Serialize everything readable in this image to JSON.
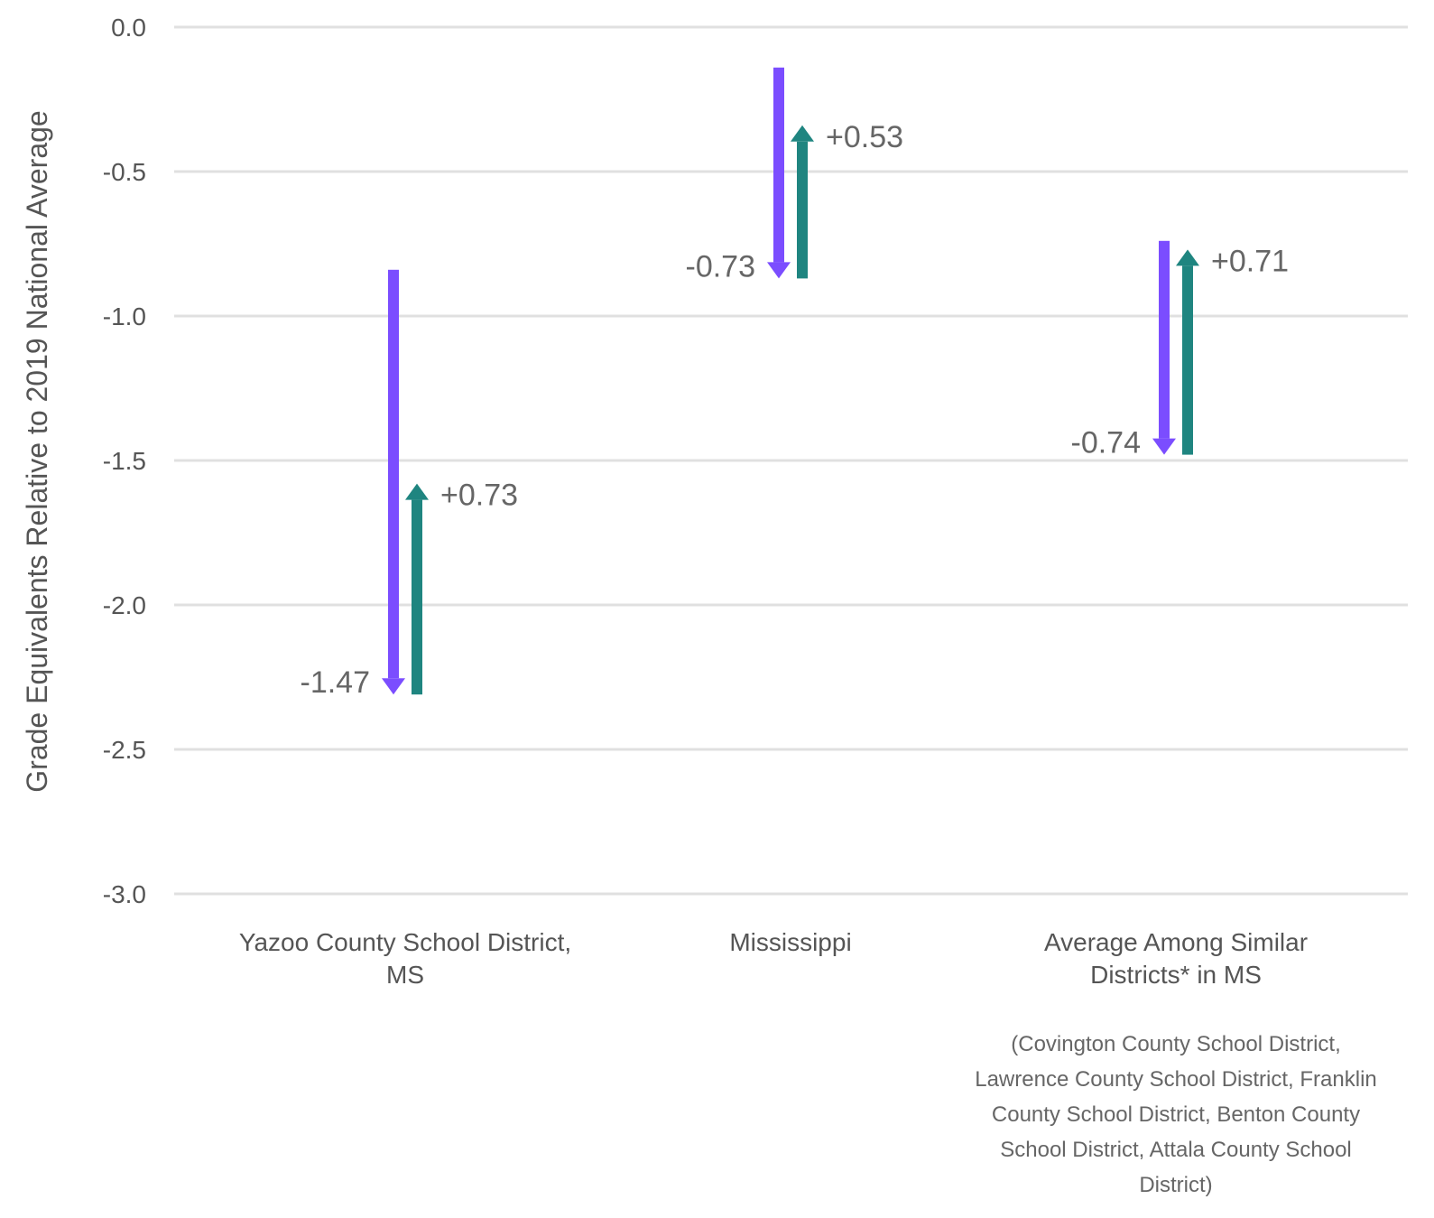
{
  "chart_data": {
    "type": "arrow-range",
    "ylabel": "Grade Equivalents Relative to 2019 National Average",
    "ylim": [
      -3.0,
      0.0
    ],
    "yticks": [
      "0.0",
      "-0.5",
      "-1.0",
      "-1.5",
      "-2.0",
      "-2.5",
      "-3.0"
    ],
    "grid": true,
    "categories": [
      {
        "label_lines": [
          "Yazoo County School District,",
          "MS"
        ],
        "note_lines": [],
        "decline": {
          "start": -0.84,
          "end": -2.31,
          "label": "-1.47"
        },
        "recovery": {
          "start": -2.31,
          "end": -1.58,
          "label": "+0.73"
        }
      },
      {
        "label_lines": [
          "Mississippi"
        ],
        "note_lines": [],
        "decline": {
          "start": -0.14,
          "end": -0.87,
          "label": "-0.73"
        },
        "recovery": {
          "start": -0.87,
          "end": -0.34,
          "label": "+0.53"
        }
      },
      {
        "label_lines": [
          "Average Among Similar",
          "Districts* in MS"
        ],
        "note_lines": [
          "(Covington County School District,",
          "Lawrence County School District, Franklin",
          "County School District, Benton County",
          "School District, Attala County School",
          "District)"
        ],
        "decline": {
          "start": -0.74,
          "end": -1.48,
          "label": "-0.74"
        },
        "recovery": {
          "start": -1.48,
          "end": -0.77,
          "label": "+0.71"
        }
      }
    ],
    "colors": {
      "decline": "#7b4dff",
      "recovery": "#1f8580",
      "grid": "#e0e0e0",
      "text": "#555555"
    }
  }
}
